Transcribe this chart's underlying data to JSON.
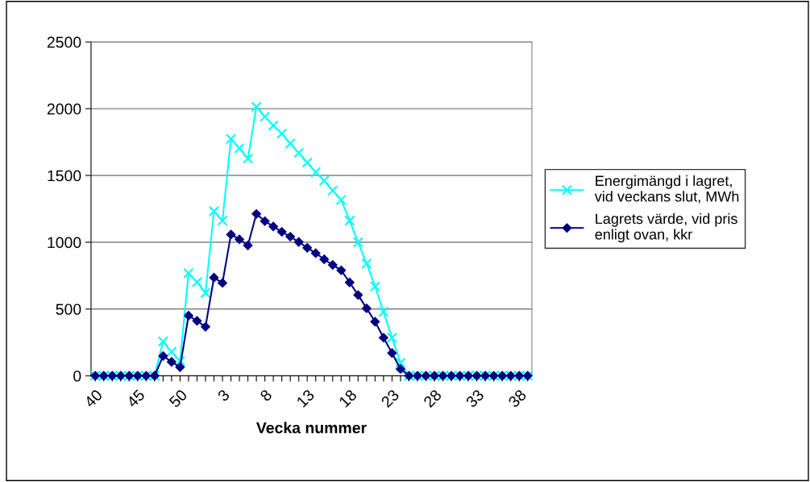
{
  "chart_data": {
    "type": "line",
    "xlabel": "Vecka nummer",
    "categories": [
      "40",
      null,
      null,
      null,
      null,
      "45",
      null,
      null,
      null,
      null,
      "50",
      null,
      null,
      null,
      null,
      "3",
      null,
      null,
      null,
      null,
      "8",
      null,
      null,
      null,
      null,
      "13",
      null,
      null,
      null,
      null,
      "18",
      null,
      null,
      null,
      null,
      "23",
      null,
      null,
      null,
      null,
      "28",
      null,
      null,
      null,
      null,
      "33",
      null,
      null,
      null,
      null,
      "38",
      null
    ],
    "series": [
      {
        "name": "Energimängd i lagret,\nvid veckans slut, MWh",
        "color": "#00ffff",
        "marker": "cross",
        "values": [
          0,
          0,
          0,
          0,
          0,
          0,
          0,
          0,
          257,
          180,
          110,
          768,
          701,
          621,
          1232,
          1162,
          1774,
          1703,
          1627,
          2014,
          1940,
          1874,
          1814,
          1739,
          1669,
          1597,
          1525,
          1461,
          1387,
          1317,
          1162,
          1000,
          840,
          669,
          479,
          285,
          98,
          0,
          0,
          0,
          0,
          0,
          0,
          0,
          0,
          0,
          0,
          0,
          0,
          0,
          0,
          0
        ]
      },
      {
        "name": "Lagrets värde, vid pris\nenligt ovan, kkr",
        "color": "#000080",
        "marker": "diamond",
        "values": [
          0,
          0,
          0,
          0,
          0,
          0,
          0,
          0,
          148,
          104,
          64,
          451,
          411,
          367,
          735,
          695,
          1058,
          1022,
          976,
          1212,
          1158,
          1118,
          1078,
          1042,
          1002,
          958,
          918,
          872,
          830,
          790,
          699,
          605,
          505,
          405,
          285,
          170,
          50,
          0,
          0,
          0,
          0,
          0,
          0,
          0,
          0,
          0,
          0,
          0,
          0,
          0,
          0,
          0
        ]
      }
    ],
    "ylim": [
      0,
      2500
    ],
    "yticks": [
      0,
      500,
      1000,
      1500,
      2000,
      2500
    ],
    "grid": "y",
    "legend": "right"
  }
}
